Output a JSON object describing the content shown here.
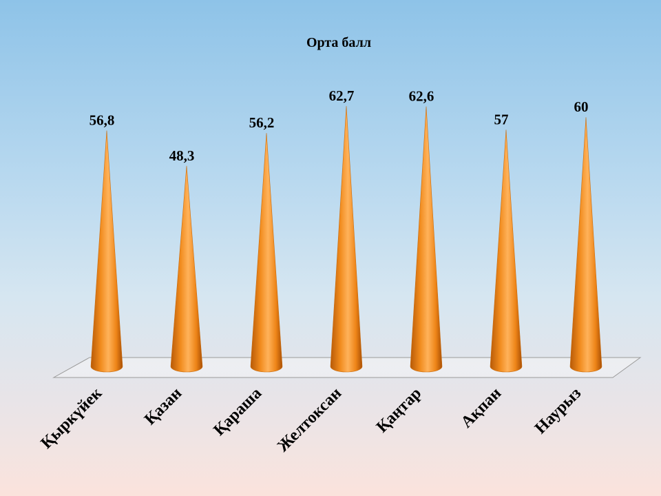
{
  "chart_data": {
    "type": "bar",
    "title": "Орта балл",
    "categories": [
      "Қыркүйек",
      "Қазан",
      "Қараша",
      "Желтоксан",
      "Қаңтар",
      "Ақпан",
      "Наурыз"
    ],
    "values": [
      56.8,
      48.3,
      56.2,
      62.7,
      62.6,
      57,
      60
    ],
    "data_labels": [
      "56,8",
      "48,3",
      "56,2",
      "62,7",
      "62,6",
      "57",
      "60"
    ],
    "bar_shape": "cone",
    "bar_color": "#f28c1e",
    "ylim": [
      0,
      70
    ],
    "grid": false,
    "legend": "none"
  }
}
